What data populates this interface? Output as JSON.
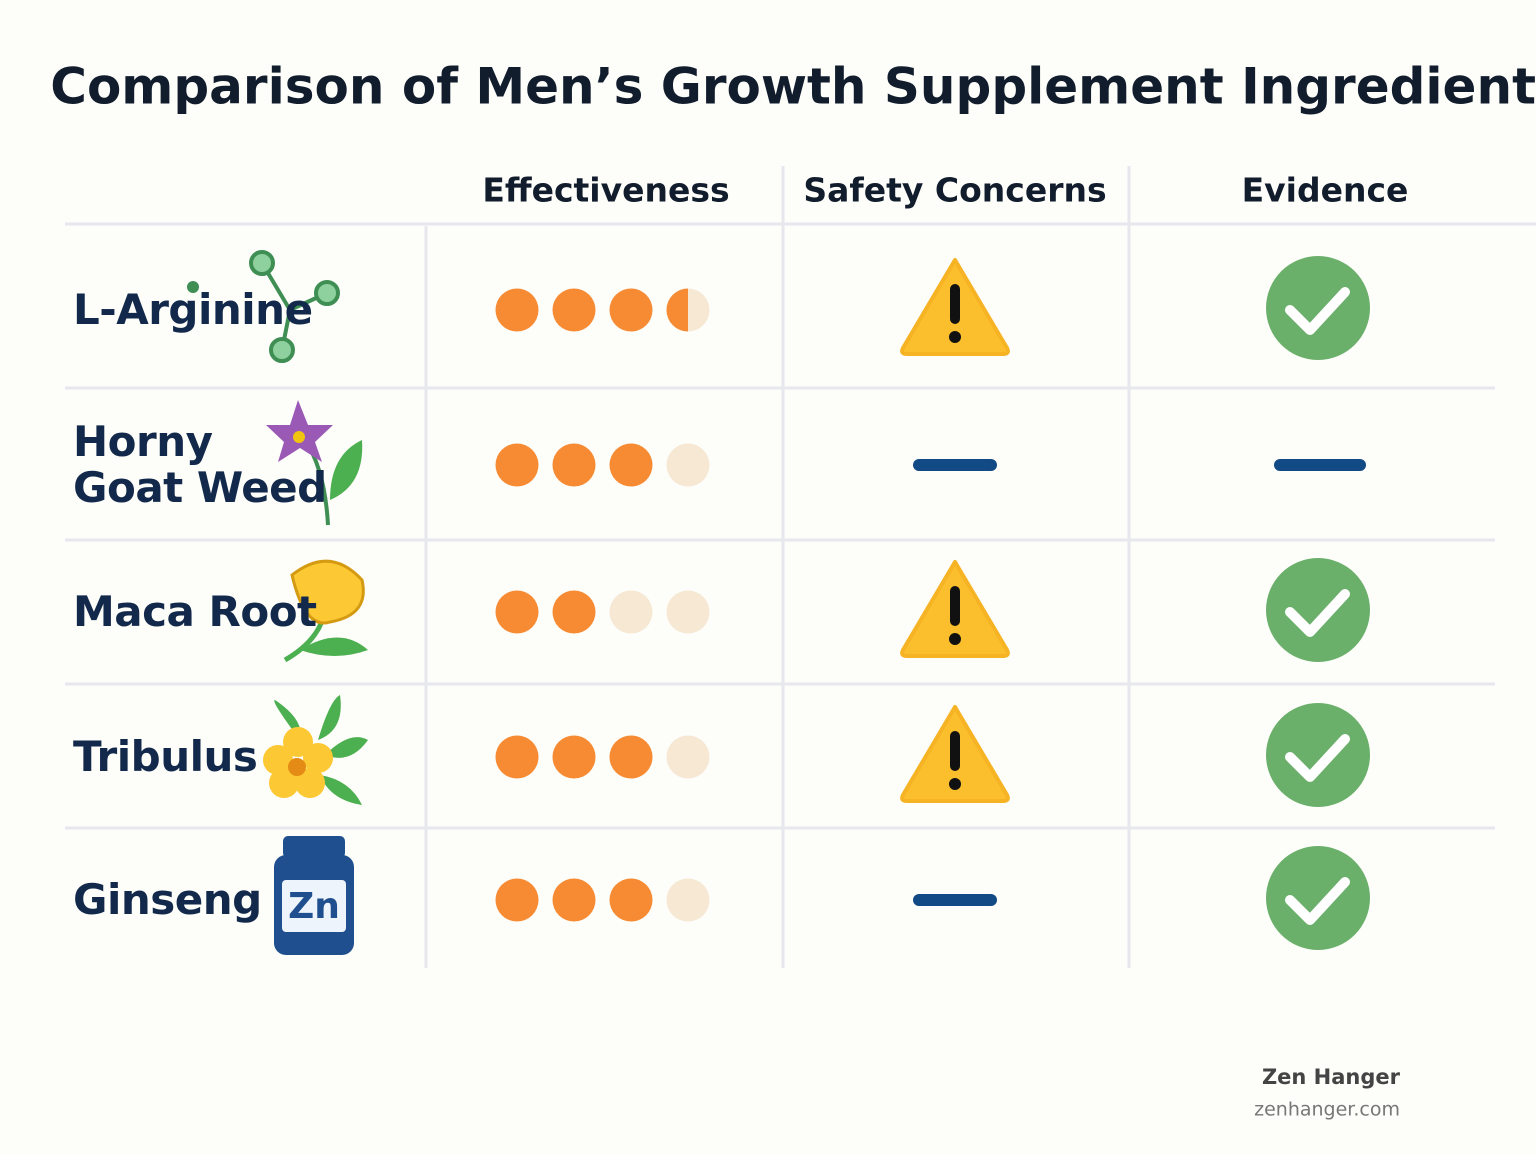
{
  "title": "Comparison of Men’s Growth Supplement Ingredients",
  "table": {
    "headers": [
      "Effectiveness",
      "Safety Concerns",
      "Evidence"
    ],
    "rating_scale": 4,
    "rows": [
      {
        "name": "L-Arginine",
        "effectiveness": 3.5,
        "safety": "warning",
        "evidence": "check"
      },
      {
        "name": "Horny\nGoat Weed",
        "effectiveness": 3,
        "safety": "none",
        "evidence": "none"
      },
      {
        "name": "Maca Root",
        "effectiveness": 2,
        "safety": "warning",
        "evidence": "check"
      },
      {
        "name": "Tribulus",
        "effectiveness": 3,
        "safety": "warning",
        "evidence": "check"
      },
      {
        "name": "Ginseng",
        "effectiveness": 3,
        "safety": "none",
        "evidence": "check",
        "icon_text": "Zn"
      }
    ]
  },
  "footer": {
    "brand": "Zen Hanger",
    "url": "zenhanger.com"
  }
}
